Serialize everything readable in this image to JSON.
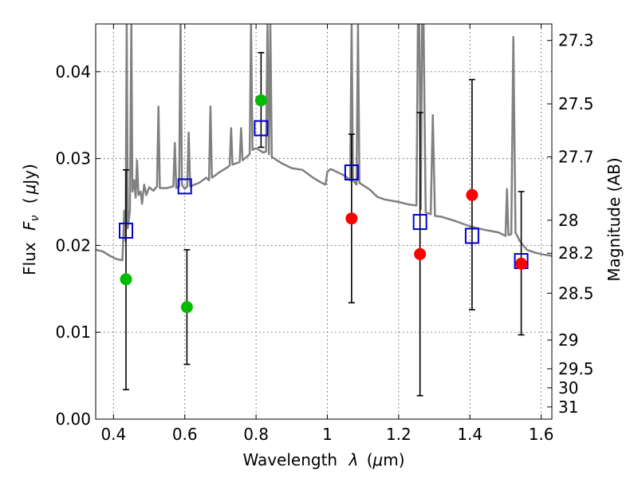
{
  "chart_data": {
    "type": "scatter",
    "xlabel_text": "Wavelength",
    "xlabel_symbol": "λ",
    "xlabel_unit_open": "(",
    "xlabel_unit_mu": "μ",
    "xlabel_unit_rest": "m)",
    "ylabel_text": "Flux",
    "ylabel_symbol": "F",
    "ylabel_subscript": "ν",
    "ylabel_unit_open": "(",
    "ylabel_unit_mu": "μ",
    "ylabel_unit_rest": "Jy)",
    "y2label": "Magnitude (AB)",
    "xlim": [
      0.35,
      1.63
    ],
    "ylim": [
      0.0,
      0.0455
    ],
    "grid": true,
    "x_ticks": [
      0.4,
      0.6,
      0.8,
      1.0,
      1.2,
      1.4,
      1.6
    ],
    "x_tick_labels": [
      "0.4",
      "0.6",
      "0.8",
      "1",
      "1.2",
      "1.4",
      "1.6"
    ],
    "y_ticks": [
      0.0,
      0.01,
      0.02,
      0.03,
      0.04
    ],
    "y_tick_labels": [
      "0.00",
      "0.01",
      "0.02",
      "0.03",
      "0.04"
    ],
    "y2_ticks": [
      {
        "label": "27.3",
        "flux": 0.0436
      },
      {
        "label": "27.5",
        "flux": 0.0363
      },
      {
        "label": "27.7",
        "flux": 0.0302
      },
      {
        "label": "28",
        "flux": 0.0229
      },
      {
        "label": "28.2",
        "flux": 0.0191
      },
      {
        "label": "28.5",
        "flux": 0.0145
      },
      {
        "label": "29",
        "flux": 0.0091
      },
      {
        "label": "29.5",
        "flux": 0.0058
      },
      {
        "label": "30",
        "flux": 0.0036
      },
      {
        "label": "31",
        "flux": 0.0014
      }
    ],
    "colors": {
      "template": "#808080",
      "error_bars": "#000000",
      "model_points": "#0000cc",
      "green_points": "#00bb00",
      "red_points": "#ff0000"
    },
    "series": [
      {
        "marker": "open-square",
        "color": "#0000cc",
        "points": [
          {
            "x": 0.435,
            "y": 0.0217
          },
          {
            "x": 0.6,
            "y": 0.0268
          },
          {
            "x": 0.814,
            "y": 0.0335
          },
          {
            "x": 1.068,
            "y": 0.0284
          },
          {
            "x": 1.26,
            "y": 0.0227
          },
          {
            "x": 1.406,
            "y": 0.0211
          },
          {
            "x": 1.544,
            "y": 0.0182
          }
        ]
      },
      {
        "marker": "filled-circle",
        "color": "#00bb00",
        "points": [
          {
            "x": 0.435,
            "y": 0.0161,
            "ylo": 0.0034,
            "yhi": 0.0287
          },
          {
            "x": 0.606,
            "y": 0.0129,
            "ylo": 0.0063,
            "yhi": 0.0195
          },
          {
            "x": 0.814,
            "y": 0.0367,
            "ylo": 0.0313,
            "yhi": 0.0422
          }
        ]
      },
      {
        "marker": "filled-circle",
        "color": "#ff0000",
        "points": [
          {
            "x": 1.068,
            "y": 0.0231,
            "ylo": 0.0134,
            "yhi": 0.0328
          },
          {
            "x": 1.26,
            "y": 0.019,
            "ylo": 0.0027,
            "yhi": 0.0353
          },
          {
            "x": 1.406,
            "y": 0.0258,
            "ylo": 0.0126,
            "yhi": 0.0391
          },
          {
            "x": 1.544,
            "y": 0.0179,
            "ylo": 0.0097,
            "yhi": 0.0262
          }
        ]
      },
      {
        "type": "line",
        "marker": "none",
        "color": "#808080",
        "points": [
          {
            "x": 0.35,
            "y": 0.0195
          },
          {
            "x": 0.37,
            "y": 0.0193
          },
          {
            "x": 0.39,
            "y": 0.0188
          },
          {
            "x": 0.41,
            "y": 0.0184
          },
          {
            "x": 0.425,
            "y": 0.0183
          },
          {
            "x": 0.43,
            "y": 0.024
          },
          {
            "x": 0.434,
            "y": 0.0205
          },
          {
            "x": 0.437,
            "y": 0.0455
          },
          {
            "x": 0.44,
            "y": 0.022
          },
          {
            "x": 0.446,
            "y": 0.024
          },
          {
            "x": 0.45,
            "y": 0.0455
          },
          {
            "x": 0.453,
            "y": 0.0262
          },
          {
            "x": 0.458,
            "y": 0.0275
          },
          {
            "x": 0.462,
            "y": 0.0255
          },
          {
            "x": 0.466,
            "y": 0.0298
          },
          {
            "x": 0.47,
            "y": 0.0258
          },
          {
            "x": 0.476,
            "y": 0.0262
          },
          {
            "x": 0.48,
            "y": 0.0248
          },
          {
            "x": 0.486,
            "y": 0.027
          },
          {
            "x": 0.492,
            "y": 0.0258
          },
          {
            "x": 0.5,
            "y": 0.0267
          },
          {
            "x": 0.512,
            "y": 0.0263
          },
          {
            "x": 0.522,
            "y": 0.0268
          },
          {
            "x": 0.526,
            "y": 0.036
          },
          {
            "x": 0.53,
            "y": 0.0266
          },
          {
            "x": 0.55,
            "y": 0.0266
          },
          {
            "x": 0.568,
            "y": 0.0268
          },
          {
            "x": 0.572,
            "y": 0.0318
          },
          {
            "x": 0.576,
            "y": 0.0266
          },
          {
            "x": 0.584,
            "y": 0.0268
          },
          {
            "x": 0.588,
            "y": 0.0455
          },
          {
            "x": 0.592,
            "y": 0.027
          },
          {
            "x": 0.6,
            "y": 0.0265
          },
          {
            "x": 0.607,
            "y": 0.0268
          },
          {
            "x": 0.611,
            "y": 0.033
          },
          {
            "x": 0.615,
            "y": 0.0268
          },
          {
            "x": 0.64,
            "y": 0.0272
          },
          {
            "x": 0.66,
            "y": 0.0278
          },
          {
            "x": 0.668,
            "y": 0.0275
          },
          {
            "x": 0.672,
            "y": 0.036
          },
          {
            "x": 0.676,
            "y": 0.0278
          },
          {
            "x": 0.7,
            "y": 0.0285
          },
          {
            "x": 0.72,
            "y": 0.029
          },
          {
            "x": 0.726,
            "y": 0.0292
          },
          {
            "x": 0.73,
            "y": 0.0335
          },
          {
            "x": 0.734,
            "y": 0.0293
          },
          {
            "x": 0.754,
            "y": 0.0296
          },
          {
            "x": 0.758,
            "y": 0.0335
          },
          {
            "x": 0.762,
            "y": 0.0298
          },
          {
            "x": 0.782,
            "y": 0.0305
          },
          {
            "x": 0.786,
            "y": 0.0455
          },
          {
            "x": 0.79,
            "y": 0.031
          },
          {
            "x": 0.8,
            "y": 0.0312
          },
          {
            "x": 0.82,
            "y": 0.0307
          },
          {
            "x": 0.828,
            "y": 0.0308
          },
          {
            "x": 0.832,
            "y": 0.0455
          },
          {
            "x": 0.836,
            "y": 0.0305
          },
          {
            "x": 0.84,
            "y": 0.0455
          },
          {
            "x": 0.844,
            "y": 0.0302
          },
          {
            "x": 0.87,
            "y": 0.0295
          },
          {
            "x": 0.9,
            "y": 0.0289
          },
          {
            "x": 0.93,
            "y": 0.0287
          },
          {
            "x": 0.96,
            "y": 0.0278
          },
          {
            "x": 0.98,
            "y": 0.0273
          },
          {
            "x": 0.995,
            "y": 0.027
          },
          {
            "x": 1.0,
            "y": 0.0285
          },
          {
            "x": 1.01,
            "y": 0.0288
          },
          {
            "x": 1.05,
            "y": 0.028
          },
          {
            "x": 1.064,
            "y": 0.0275
          },
          {
            "x": 1.068,
            "y": 0.0455
          },
          {
            "x": 1.072,
            "y": 0.0275
          },
          {
            "x": 1.082,
            "y": 0.027
          },
          {
            "x": 1.086,
            "y": 0.0455
          },
          {
            "x": 1.09,
            "y": 0.0272
          },
          {
            "x": 1.12,
            "y": 0.0264
          },
          {
            "x": 1.14,
            "y": 0.0256
          },
          {
            "x": 1.16,
            "y": 0.0253
          },
          {
            "x": 1.2,
            "y": 0.025
          },
          {
            "x": 1.23,
            "y": 0.0247
          },
          {
            "x": 1.25,
            "y": 0.0246
          },
          {
            "x": 1.254,
            "y": 0.0455
          },
          {
            "x": 1.258,
            "y": 0.0455
          },
          {
            "x": 1.262,
            "y": 0.0242
          },
          {
            "x": 1.266,
            "y": 0.0455
          },
          {
            "x": 1.27,
            "y": 0.0455
          },
          {
            "x": 1.276,
            "y": 0.0238
          },
          {
            "x": 1.29,
            "y": 0.0236
          },
          {
            "x": 1.296,
            "y": 0.035
          },
          {
            "x": 1.302,
            "y": 0.0234
          },
          {
            "x": 1.32,
            "y": 0.0233
          },
          {
            "x": 1.36,
            "y": 0.0228
          },
          {
            "x": 1.4,
            "y": 0.0222
          },
          {
            "x": 1.44,
            "y": 0.0218
          },
          {
            "x": 1.48,
            "y": 0.0215
          },
          {
            "x": 1.5,
            "y": 0.0211
          },
          {
            "x": 1.504,
            "y": 0.0265
          },
          {
            "x": 1.508,
            "y": 0.0212
          },
          {
            "x": 1.516,
            "y": 0.0213
          },
          {
            "x": 1.522,
            "y": 0.044
          },
          {
            "x": 1.528,
            "y": 0.0215
          },
          {
            "x": 1.54,
            "y": 0.0205
          },
          {
            "x": 1.56,
            "y": 0.0195
          },
          {
            "x": 1.58,
            "y": 0.0192
          },
          {
            "x": 1.6,
            "y": 0.019
          },
          {
            "x": 1.63,
            "y": 0.0188
          }
        ]
      }
    ]
  }
}
